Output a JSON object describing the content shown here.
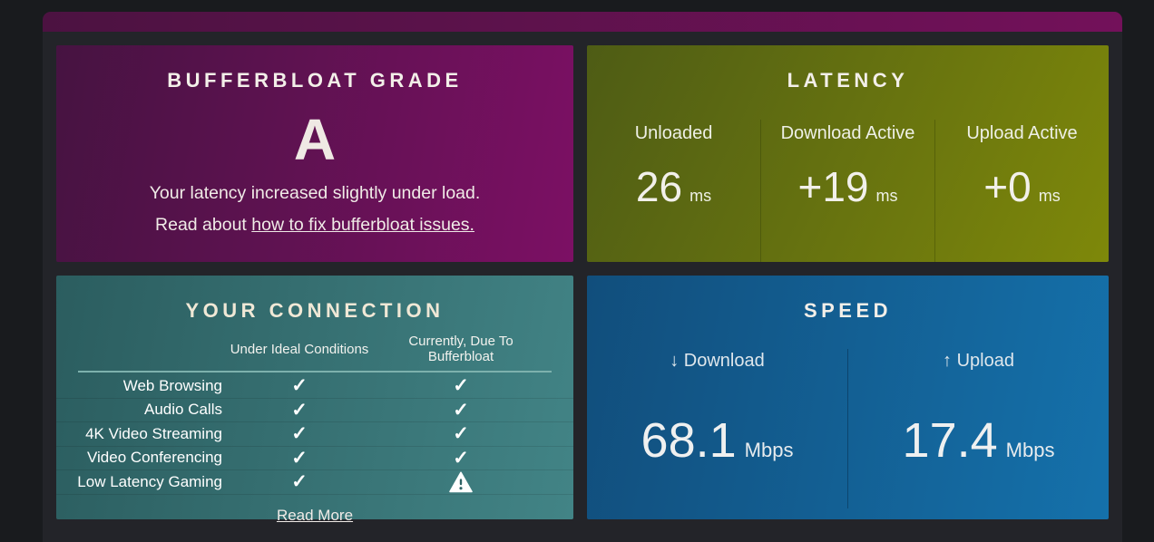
{
  "colors": {
    "page_bg": "#191b1e",
    "panel_bg": "#232429",
    "topbar_from": "#4c1241",
    "topbar_to": "#73115a",
    "grade_from": "#461341",
    "grade_to": "#7c1064",
    "latency_from": "#4e5c15",
    "latency_to": "#7e880a",
    "connection_from": "#2b5d5f",
    "connection_to": "#428486",
    "speed_from": "#114e7c",
    "speed_to": "#1571ab"
  },
  "grade_card": {
    "title": "BUFFERBLOAT GRADE",
    "grade": "A",
    "message": "Your latency increased slightly under load.",
    "read_prefix": "Read about ",
    "link": "how to fix bufferbloat issues."
  },
  "latency_card": {
    "title": "LATENCY",
    "columns": [
      {
        "label": "Unloaded",
        "value": "26",
        "unit": "ms"
      },
      {
        "label": "Download Active",
        "value": "+19",
        "unit": "ms"
      },
      {
        "label": "Upload Active",
        "value": "+0",
        "unit": "ms"
      }
    ]
  },
  "connection_card": {
    "title": "YOUR CONNECTION",
    "headers": [
      "Under Ideal Conditions",
      "Currently, Due To Bufferbloat"
    ],
    "rows": [
      {
        "label": "Web Browsing",
        "ideal": "check",
        "current": "check"
      },
      {
        "label": "Audio Calls",
        "ideal": "check",
        "current": "check"
      },
      {
        "label": "4K Video Streaming",
        "ideal": "check",
        "current": "check"
      },
      {
        "label": "Video Conferencing",
        "ideal": "check",
        "current": "check"
      },
      {
        "label": "Low Latency Gaming",
        "ideal": "check",
        "current": "warning"
      }
    ],
    "read_more": "Read More"
  },
  "speed_card": {
    "title": "SPEED",
    "columns": [
      {
        "arrow": "↓",
        "label": "Download",
        "value": "68.1",
        "unit": "Mbps"
      },
      {
        "arrow": "↑",
        "label": "Upload",
        "value": "17.4",
        "unit": "Mbps"
      }
    ]
  }
}
